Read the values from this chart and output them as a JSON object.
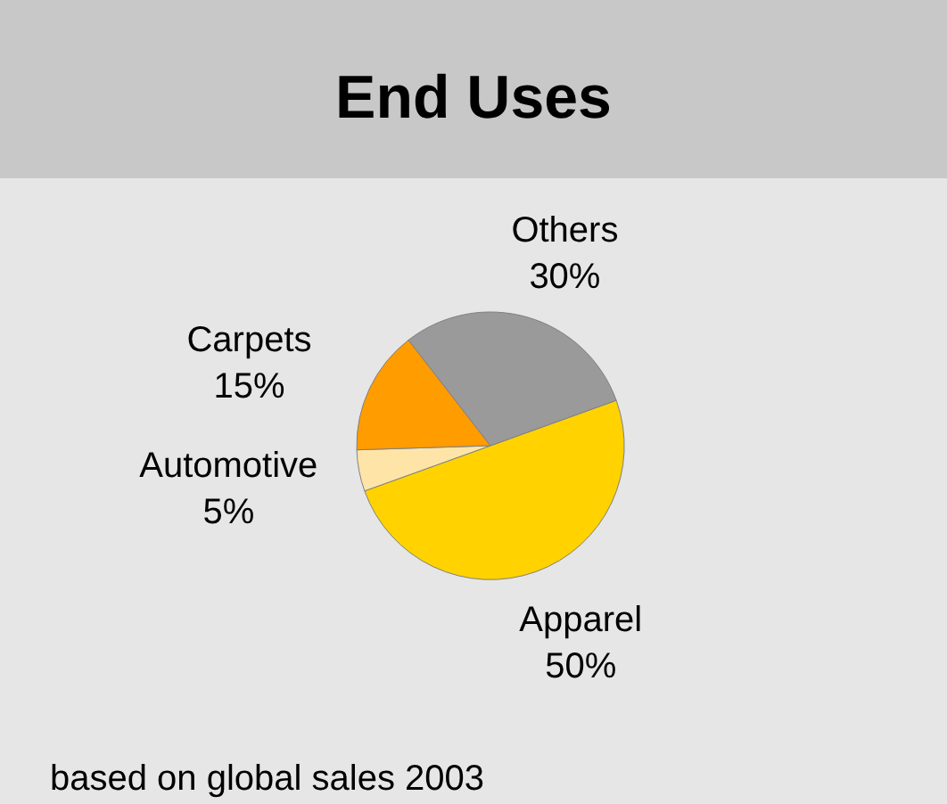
{
  "chart_data": {
    "type": "pie",
    "title": "End Uses",
    "categories": [
      "Apparel",
      "Automotive",
      "Carpets",
      "Others"
    ],
    "values": [
      50,
      5,
      15,
      30
    ],
    "value_labels": [
      "50%",
      "5%",
      "15%",
      "30%"
    ],
    "colors": [
      "#ffd200",
      "#ffe4a8",
      "#ff9c00",
      "#9a9a9a"
    ],
    "annotations": [
      "based on global sales 2003"
    ]
  }
}
